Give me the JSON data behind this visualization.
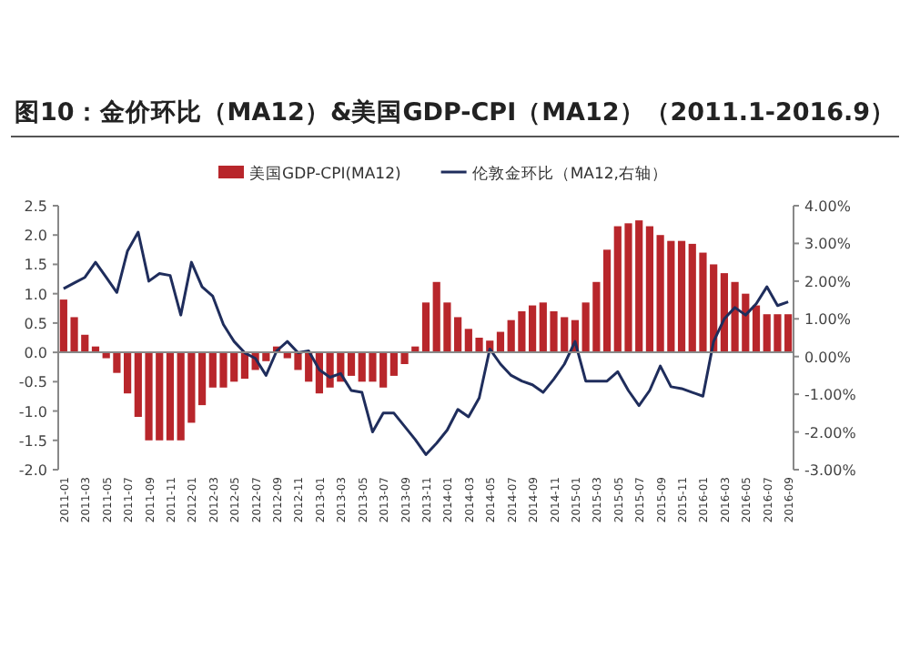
{
  "chart_data": {
    "type": "bar",
    "title": "图10：金价环比（MA12）&美国GDP-CPI（MA12）（2011.1-2016.9）",
    "categories": [
      "2011-01",
      null,
      "2011-03",
      null,
      "2011-05",
      null,
      "2011-07",
      null,
      "2011-09",
      null,
      "2011-11",
      null,
      "2012-01",
      null,
      "2012-03",
      null,
      "2012-05",
      null,
      "2012-07",
      null,
      "2012-09",
      null,
      "2012-11",
      null,
      "2013-01",
      null,
      "2013-03",
      null,
      "2013-05",
      null,
      "2013-07",
      null,
      "2013-09",
      null,
      "2013-11",
      null,
      "2014-01",
      null,
      "2014-03",
      null,
      "2014-05",
      null,
      "2014-07",
      null,
      "2014-09",
      null,
      "2014-11",
      null,
      "2015-01",
      null,
      "2015-03",
      null,
      "2015-05",
      null,
      "2015-07",
      null,
      "2015-09",
      null,
      "2015-11",
      null,
      "2016-01",
      null,
      "2016-03",
      null,
      "2016-05",
      null,
      "2016-07",
      null,
      "2016-09"
    ],
    "series": [
      {
        "name": "美国GDP-CPI(MA12)",
        "color": "#b8262b",
        "values": [
          0.9,
          0.6,
          0.3,
          0.1,
          -0.1,
          -0.35,
          -0.7,
          -1.1,
          -1.5,
          -1.5,
          -1.5,
          -1.5,
          -1.2,
          -0.9,
          -0.6,
          -0.6,
          -0.5,
          -0.45,
          -0.3,
          -0.15,
          0.1,
          -0.1,
          -0.3,
          -0.5,
          -0.7,
          -0.6,
          -0.5,
          -0.4,
          -0.5,
          -0.5,
          -0.6,
          -0.4,
          -0.2,
          0.1,
          0.85,
          1.2,
          0.85,
          0.6,
          0.4,
          0.25,
          0.2,
          0.35,
          0.55,
          0.7,
          0.8,
          0.85,
          0.7,
          0.6,
          0.55,
          0.85,
          1.2,
          1.75,
          2.15,
          2.2,
          2.25,
          2.15,
          2.0,
          1.9,
          1.9,
          1.85,
          1.7,
          1.5,
          1.35,
          1.2,
          1.0,
          0.8,
          0.65,
          0.65,
          0.65
        ]
      },
      {
        "name": "伦敦金环比（MA12,右轴）",
        "type": "line",
        "axis": "y2",
        "color": "#1f2d5c",
        "values": [
          1.8,
          1.95,
          2.1,
          2.5,
          2.1,
          1.7,
          2.8,
          3.3,
          2.0,
          2.2,
          2.15,
          1.1,
          2.5,
          1.85,
          1.6,
          0.85,
          0.4,
          0.1,
          -0.05,
          -0.5,
          0.15,
          0.4,
          0.1,
          0.15,
          -0.35,
          -0.55,
          -0.45,
          -0.9,
          -0.95,
          -2.0,
          -1.5,
          -1.5,
          -1.85,
          -2.2,
          -2.6,
          -2.3,
          -1.95,
          -1.4,
          -1.6,
          -1.1,
          0.2,
          -0.2,
          -0.5,
          -0.65,
          -0.75,
          -0.95,
          -0.6,
          -0.2,
          0.4,
          -0.65,
          -0.65,
          -0.65,
          -0.4,
          -0.9,
          -1.3,
          -0.9,
          -0.25,
          -0.8,
          -0.85,
          -0.95,
          -1.05,
          0.4,
          1.0,
          1.3,
          1.1,
          1.4,
          1.85,
          1.35,
          1.45
        ]
      }
    ],
    "ylim": [
      -2,
      2.5
    ],
    "yticks": [
      {
        "value": 2.5,
        "label": "2.5"
      },
      {
        "value": 2,
        "label": "2.0"
      },
      {
        "value": 1.5,
        "label": "1.5"
      },
      {
        "value": 1,
        "label": "1.0"
      },
      {
        "value": 0.5,
        "label": "0.5"
      },
      {
        "value": 0,
        "label": "0.0"
      },
      {
        "value": -0.5,
        "label": "-0.5"
      },
      {
        "value": -1,
        "label": "-1.0"
      },
      {
        "value": -1.5,
        "label": "-1.5"
      },
      {
        "value": -2,
        "label": "-2.0"
      }
    ],
    "y2lim": [
      -3,
      4
    ],
    "y2ticks": [
      {
        "value": 4,
        "label": "4.00%"
      },
      {
        "value": 3,
        "label": "3.00%"
      },
      {
        "value": 2,
        "label": "2.00%"
      },
      {
        "value": 1,
        "label": "1.00%"
      },
      {
        "value": 0,
        "label": "0.00%"
      },
      {
        "value": -1,
        "label": "-1.00%"
      },
      {
        "value": -2,
        "label": "-2.00%"
      },
      {
        "value": -3,
        "label": "-3.00%"
      }
    ],
    "legend": "top"
  }
}
